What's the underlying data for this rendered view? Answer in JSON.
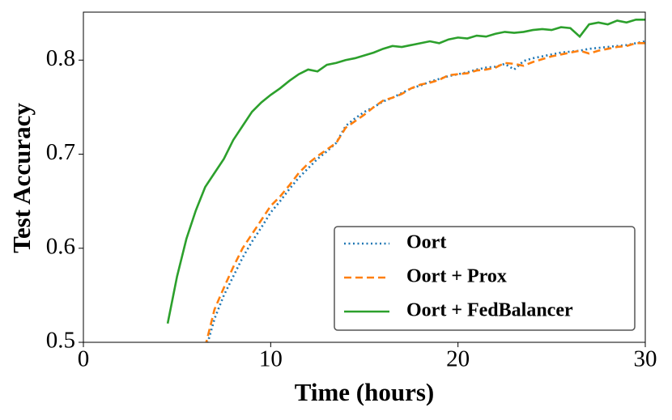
{
  "chart_data": {
    "type": "line",
    "xlabel": "Time (hours)",
    "ylabel": "Test Accuracy",
    "x": [
      4.5,
      5,
      5.5,
      6,
      6.5,
      7,
      7.5,
      8,
      8.5,
      9,
      9.5,
      10,
      10.5,
      11,
      11.5,
      12,
      12.5,
      13,
      13.5,
      14,
      14.5,
      15,
      15.5,
      16,
      16.5,
      17,
      17.5,
      18,
      18.5,
      19,
      19.5,
      20,
      20.5,
      21,
      21.5,
      22,
      22.5,
      23,
      23.5,
      24,
      24.5,
      25,
      25.5,
      26,
      26.5,
      27,
      27.5,
      28,
      28.5,
      29,
      29.5,
      30
    ],
    "series": [
      {
        "name": "Oort",
        "color": "#1f77b4",
        "style": "dotted",
        "values": [
          null,
          null,
          null,
          null,
          0.49,
          0.525,
          0.55,
          0.57,
          0.59,
          0.607,
          0.622,
          0.638,
          0.65,
          0.663,
          0.675,
          0.685,
          0.695,
          0.703,
          0.712,
          0.73,
          0.738,
          0.745,
          0.75,
          0.756,
          0.76,
          0.765,
          0.77,
          0.773,
          0.777,
          0.78,
          0.783,
          0.785,
          0.787,
          0.79,
          0.792,
          0.793,
          0.796,
          0.79,
          0.799,
          0.802,
          0.804,
          0.806,
          0.808,
          0.809,
          0.81,
          0.812,
          0.813,
          0.814,
          0.815,
          0.816,
          0.818,
          0.82
        ]
      },
      {
        "name": "Oort + Prox",
        "color": "#ff7f0e",
        "style": "dashed",
        "values": [
          null,
          null,
          null,
          null,
          0.495,
          0.535,
          0.558,
          0.58,
          0.6,
          0.615,
          0.63,
          0.645,
          0.655,
          0.667,
          0.68,
          0.69,
          0.698,
          0.705,
          0.712,
          0.728,
          0.735,
          0.742,
          0.75,
          0.757,
          0.76,
          0.764,
          0.77,
          0.774,
          0.776,
          0.779,
          0.784,
          0.785,
          0.786,
          0.789,
          0.79,
          0.792,
          0.797,
          0.796,
          0.794,
          0.798,
          0.801,
          0.804,
          0.806,
          0.808,
          0.81,
          0.807,
          0.81,
          0.812,
          0.814,
          0.815,
          0.818,
          0.818
        ]
      },
      {
        "name": "Oort + FedBalancer",
        "color": "#2ca02c",
        "style": "solid",
        "values": [
          0.52,
          0.57,
          0.61,
          0.64,
          0.665,
          0.68,
          0.695,
          0.715,
          0.73,
          0.745,
          0.755,
          0.763,
          0.77,
          0.778,
          0.785,
          0.79,
          0.788,
          0.795,
          0.797,
          0.8,
          0.802,
          0.805,
          0.808,
          0.812,
          0.815,
          0.814,
          0.816,
          0.818,
          0.82,
          0.818,
          0.822,
          0.824,
          0.823,
          0.826,
          0.825,
          0.828,
          0.83,
          0.829,
          0.83,
          0.832,
          0.833,
          0.832,
          0.835,
          0.834,
          0.825,
          0.838,
          0.84,
          0.838,
          0.842,
          0.84,
          0.843,
          0.843
        ]
      }
    ],
    "xlim": [
      0,
      30
    ],
    "xticks": [
      0,
      10,
      20,
      30
    ],
    "ylim": [
      0.5,
      0.851
    ],
    "yticks": [
      0.5,
      0.6,
      0.7,
      0.8
    ],
    "legend": "lower right",
    "grid": false
  }
}
